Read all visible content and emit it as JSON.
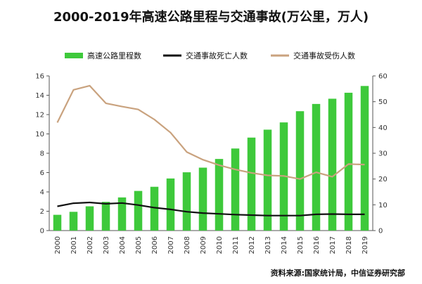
{
  "title": "2000-2019年高速公路里程与交通事故(万公里，万人)",
  "source": "资料来源:国家统计局，中信证券研究部",
  "chart_data": {
    "type": "bar+line",
    "categories": [
      "2000",
      "2001",
      "2002",
      "2003",
      "2004",
      "2005",
      "2006",
      "2007",
      "2008",
      "2009",
      "2010",
      "2011",
      "2012",
      "2013",
      "2014",
      "2015",
      "2016",
      "2017",
      "2018",
      "2019"
    ],
    "series": [
      {
        "name": "高速公路里程数",
        "type": "bar",
        "axis": "left",
        "color": "#3ec93b",
        "values": [
          1.63,
          1.94,
          2.51,
          2.97,
          3.43,
          4.1,
          4.53,
          5.39,
          6.03,
          6.51,
          7.41,
          8.49,
          9.62,
          10.44,
          11.19,
          12.35,
          13.1,
          13.64,
          14.26,
          14.96
        ]
      },
      {
        "name": "交通事故死亡人数",
        "type": "line",
        "axis": "right",
        "color": "#111111",
        "values": [
          9.4,
          10.6,
          10.9,
          10.4,
          10.7,
          9.9,
          8.9,
          8.2,
          7.3,
          6.8,
          6.5,
          6.2,
          6.0,
          5.8,
          5.8,
          5.8,
          6.3,
          6.4,
          6.3,
          6.3
        ]
      },
      {
        "name": "交通事故受伤人数",
        "type": "line",
        "axis": "right",
        "color": "#c9a27e",
        "values": [
          41.9,
          54.6,
          56.2,
          49.4,
          48.1,
          47.0,
          43.1,
          38.0,
          30.5,
          27.5,
          25.4,
          23.7,
          22.4,
          21.4,
          21.2,
          20.0,
          22.6,
          20.9,
          25.8,
          25.6
        ]
      }
    ],
    "y_left": {
      "min": 0,
      "max": 16,
      "ticks": [
        0,
        2,
        4,
        6,
        8,
        10,
        12,
        14,
        16
      ]
    },
    "y_right": {
      "min": 0,
      "max": 60,
      "ticks": [
        0,
        10,
        20,
        30,
        40,
        50,
        60
      ]
    },
    "legend_position": "top",
    "grid": false
  }
}
